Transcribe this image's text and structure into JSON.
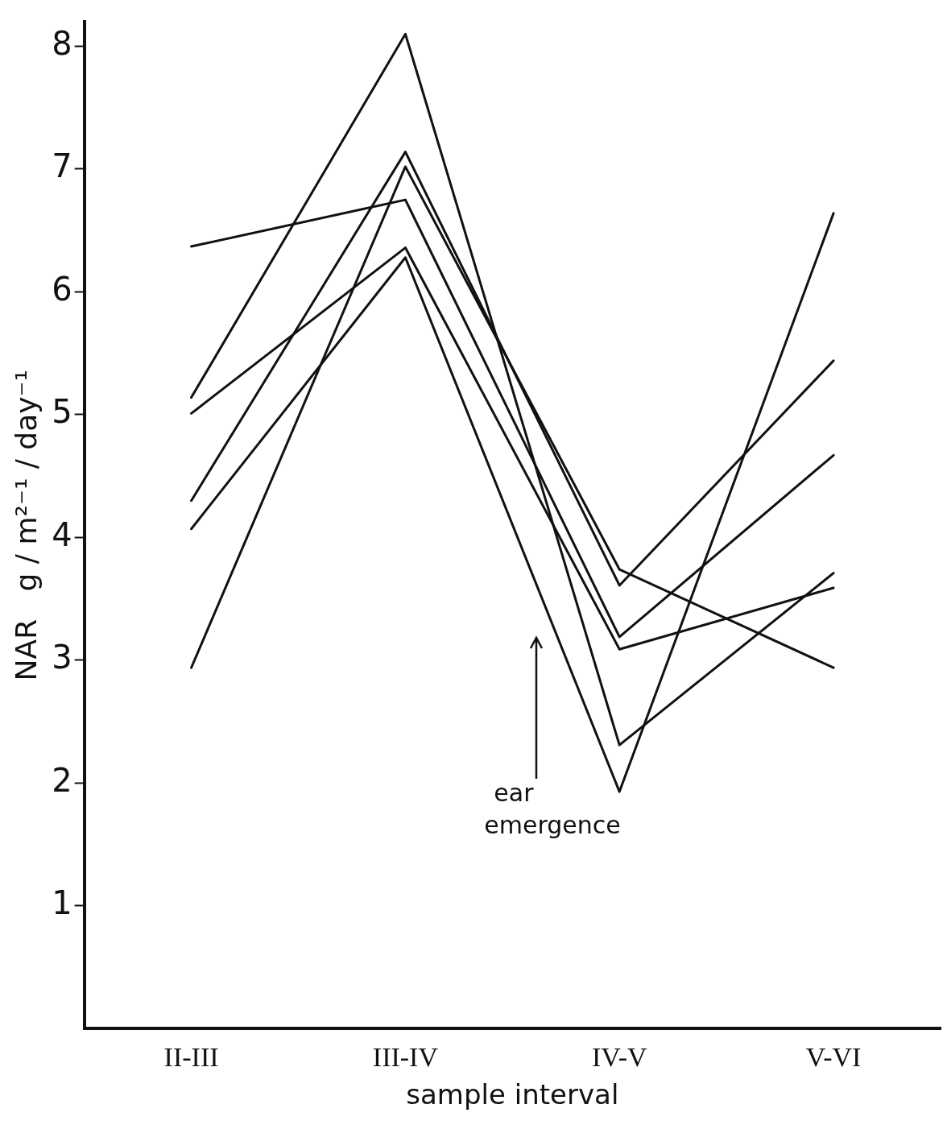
{
  "chart_data": {
    "type": "line",
    "xlabel": "sample interval",
    "ylabel": "NAR   g / m²⁻¹ / day⁻¹",
    "categories": [
      "II-III",
      "III-IV",
      "IV-V",
      "V-VI"
    ],
    "series": [
      {
        "color": "#111111",
        "values": [
          5.14,
          8.1,
          2.31,
          3.71
        ]
      },
      {
        "color": "#111111",
        "values": [
          4.3,
          7.14,
          3.61,
          5.44
        ]
      },
      {
        "color": "#111111",
        "values": [
          2.94,
          7.02,
          3.74,
          2.94
        ]
      },
      {
        "color": "#111111",
        "values": [
          6.37,
          6.75,
          3.19,
          4.67
        ]
      },
      {
        "color": "#111111",
        "values": [
          5.01,
          6.36,
          3.09,
          3.59
        ]
      },
      {
        "color": "#111111",
        "values": [
          4.07,
          6.28,
          1.93,
          6.64
        ]
      }
    ],
    "ylim": [
      0,
      8.2
    ],
    "yticks": [
      1,
      2,
      3,
      4,
      5,
      6,
      7,
      8
    ],
    "annotations": [
      "ear emergence"
    ],
    "grid": false,
    "legend": false,
    "marker": "none",
    "line_style": "solid"
  }
}
